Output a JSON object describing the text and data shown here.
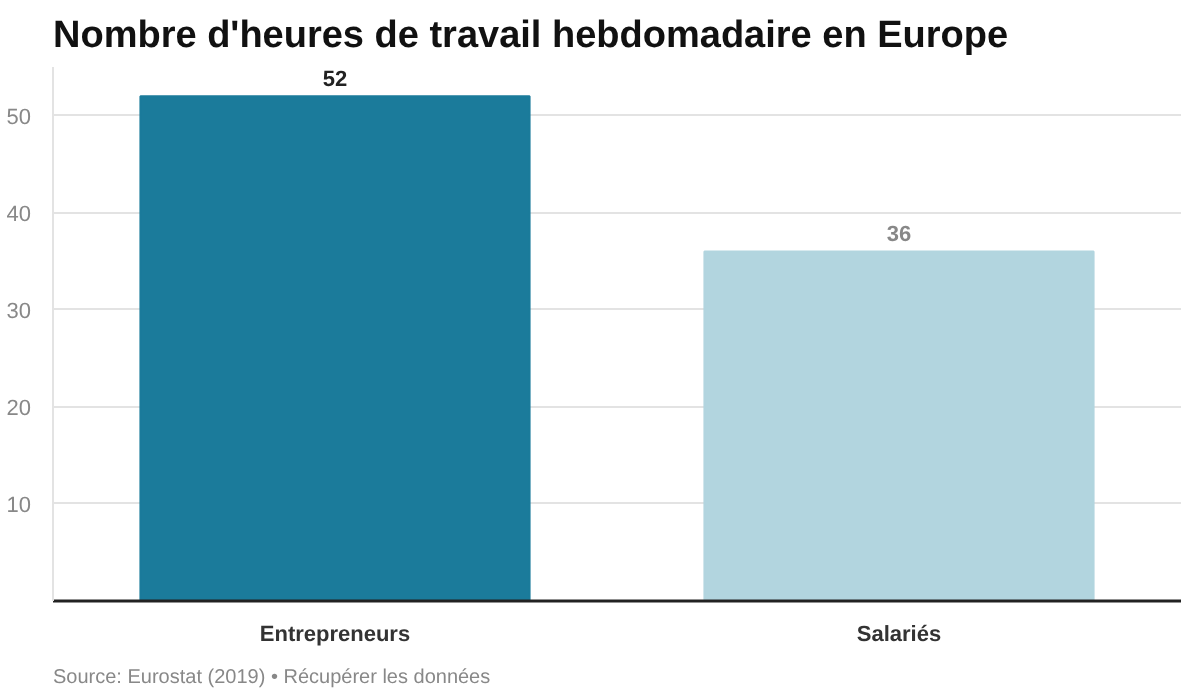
{
  "chart_data": {
    "type": "bar",
    "title": "Nombre d'heures de travail hebdomadaire en Europe",
    "categories": [
      "Entrepreneurs",
      "Salariés"
    ],
    "values": [
      52,
      36
    ],
    "colors": [
      "#1b7b9b",
      "#b2d5df"
    ],
    "ylim": [
      0,
      55
    ],
    "yticks": [
      {
        "value": 0,
        "label": null
      },
      10,
      20,
      30,
      40,
      50
    ],
    "grid": "y",
    "data_labels": true,
    "annotations": [
      "Source: Eurostat (2019) • Récupérer les données"
    ]
  }
}
